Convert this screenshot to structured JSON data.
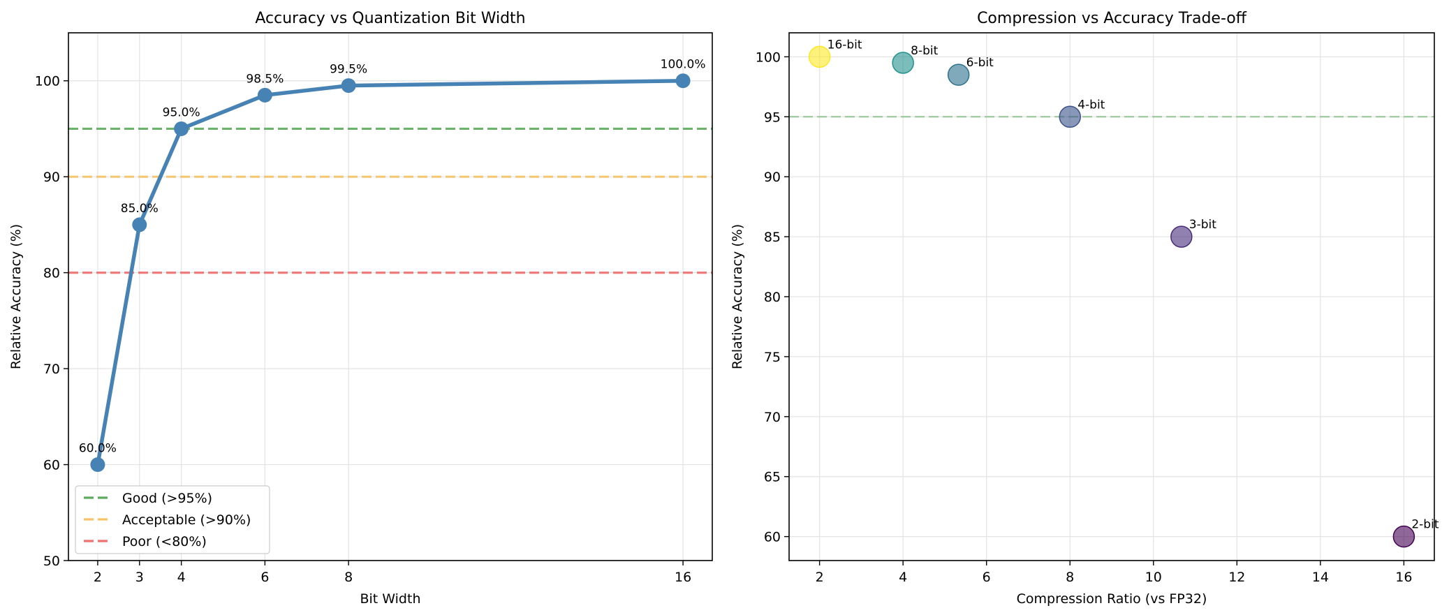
{
  "colors": {
    "line": "#4682b4",
    "good": "#5cab5c",
    "acceptable": "#f5c368",
    "poor": "#f07070",
    "grid": "#e3e3e3"
  },
  "chart_data": [
    {
      "type": "line",
      "title": "Accuracy vs Quantization Bit Width",
      "xlabel": "Bit Width",
      "ylabel": "Relative Accuracy (%)",
      "xlim": [
        1.3,
        16.7
      ],
      "ylim": [
        50,
        105
      ],
      "xticks": [
        2,
        3,
        4,
        6,
        8,
        16
      ],
      "yticks": [
        50,
        60,
        70,
        80,
        90,
        100
      ],
      "grid": true,
      "series": [
        {
          "x": [
            2,
            3,
            4,
            6,
            8,
            16
          ],
          "y": [
            60,
            85,
            95,
            98.5,
            99.5,
            100
          ],
          "point_labels": [
            "60.0%",
            "85.0%",
            "95.0%",
            "98.5%",
            "99.5%",
            "100.0%"
          ]
        }
      ],
      "reference_lines": [
        {
          "y": 95,
          "label": "Good (>95%)",
          "color": "#5cab5c"
        },
        {
          "y": 90,
          "label": "Acceptable (>90%)",
          "color": "#f5c368"
        },
        {
          "y": 80,
          "label": "Poor (<80%)",
          "color": "#f07070"
        }
      ],
      "legend_position": "lower-left"
    },
    {
      "type": "scatter",
      "title": "Compression vs Accuracy Trade-off",
      "xlabel": "Compression Ratio (vs FP32)",
      "ylabel": "Relative Accuracy (%)",
      "xlim": [
        1.27,
        16.73
      ],
      "ylim": [
        58,
        102
      ],
      "xticks": [
        2,
        4,
        6,
        8,
        10,
        12,
        14,
        16
      ],
      "yticks": [
        60,
        65,
        70,
        75,
        80,
        85,
        90,
        95,
        100
      ],
      "grid": true,
      "points": [
        {
          "x": 16,
          "y": 60,
          "label": "2-bit",
          "color": "#440154"
        },
        {
          "x": 10.67,
          "y": 85,
          "label": "3-bit",
          "color": "#472d7b"
        },
        {
          "x": 8,
          "y": 95,
          "label": "4-bit",
          "color": "#3b528b"
        },
        {
          "x": 5.33,
          "y": 98.5,
          "label": "6-bit",
          "color": "#2c728e"
        },
        {
          "x": 4,
          "y": 99.5,
          "label": "8-bit",
          "color": "#21918c"
        },
        {
          "x": 2,
          "y": 100,
          "label": "16-bit",
          "color": "#fde725"
        }
      ],
      "reference_lines": [
        {
          "y": 95,
          "color": "#5cab5c"
        }
      ]
    }
  ]
}
